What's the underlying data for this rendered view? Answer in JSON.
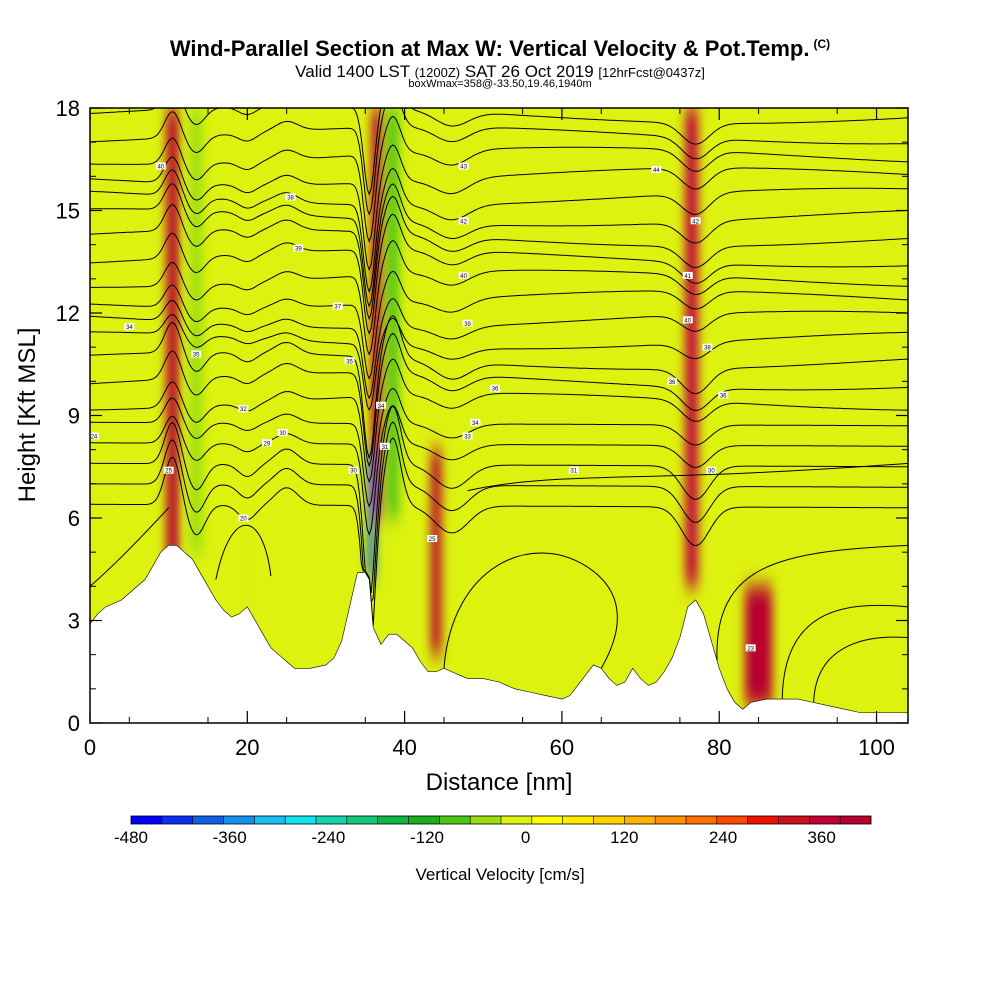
{
  "header": {
    "title_main": "Wind-Parallel Section at Max W: Vertical Velocity & Pot.Temp.",
    "title_mark": "(C)",
    "subtitle_a": "Valid 1400 LST",
    "subtitle_b": "(1200Z)",
    "subtitle_c": "SAT 26 Oct 2019",
    "subtitle_d": "[12hrFcst@0437z]",
    "boxline": "boxWmax=358@-33.50,19.46,1940m"
  },
  "chart_data": {
    "type": "heatmap",
    "xlabel": "Distance [nm]",
    "ylabel": "Height [Kft MSL]",
    "xlim": [
      0,
      104
    ],
    "ylim": [
      0,
      18
    ],
    "x_ticks": [
      "0",
      "20",
      "40",
      "60",
      "80",
      "100"
    ],
    "y_ticks": [
      "0",
      "3",
      "6",
      "9",
      "12",
      "15",
      "18"
    ],
    "colorbar": {
      "label": "Vertical Velocity [cm/s]",
      "range": [
        -480,
        420
      ],
      "step": 30,
      "tick_labels": [
        "-480",
        "-360",
        "-240",
        "-120",
        "0",
        "120",
        "240",
        "360"
      ],
      "colors": [
        "#0000ff",
        "#0a2ff2",
        "#0f5ee6",
        "#1491ee",
        "#17c0f5",
        "#11e4ee",
        "#16d4b0",
        "#10c878",
        "#10b545",
        "#19b019",
        "#4cc517",
        "#99dd10",
        "#ddf20f",
        "#ffff00",
        "#ffea00",
        "#ffd200",
        "#ffb200",
        "#ff9200",
        "#ff6e00",
        "#ff4800",
        "#ee1200",
        "#d01020",
        "#c0003a",
        "#b8002f"
      ]
    },
    "terrain_kft": {
      "x": [
        0,
        1,
        2,
        4,
        7,
        8,
        9,
        10,
        11,
        12,
        13,
        14,
        15,
        16,
        17,
        18,
        19,
        20,
        21,
        22,
        23,
        24,
        25,
        26,
        28,
        30,
        31,
        32,
        33,
        34,
        35,
        35.5,
        36,
        37,
        38,
        39,
        40,
        41,
        42,
        43,
        44,
        45,
        46,
        47,
        48,
        50,
        52,
        53,
        54,
        56,
        58,
        60,
        61,
        62,
        63,
        64,
        65,
        66,
        67,
        68,
        69,
        70,
        71,
        72,
        73,
        74,
        75,
        76,
        77,
        78,
        79,
        80,
        81,
        82,
        83,
        84,
        86,
        88,
        90,
        92,
        94,
        96,
        98,
        100,
        102,
        104
      ],
      "y": [
        2.9,
        3.2,
        3.4,
        3.6,
        4.2,
        4.6,
        5.0,
        5.2,
        5.2,
        5.0,
        4.8,
        4.4,
        4.0,
        3.6,
        3.3,
        3.1,
        3.2,
        3.4,
        3.0,
        2.6,
        2.2,
        2.0,
        1.8,
        1.6,
        1.6,
        1.7,
        1.9,
        2.4,
        3.4,
        4.4,
        4.4,
        4.2,
        2.8,
        2.3,
        2.6,
        2.6,
        2.4,
        2.2,
        1.8,
        1.5,
        1.5,
        1.6,
        1.5,
        1.4,
        1.3,
        1.3,
        1.2,
        1.1,
        1.0,
        0.9,
        0.8,
        0.7,
        0.8,
        1.1,
        1.4,
        1.7,
        1.6,
        1.3,
        1.1,
        1.2,
        1.6,
        1.3,
        1.1,
        1.2,
        1.5,
        1.9,
        2.5,
        3.4,
        3.6,
        3.2,
        2.4,
        1.6,
        1.0,
        0.6,
        0.4,
        0.6,
        0.7,
        0.7,
        0.7,
        0.6,
        0.5,
        0.4,
        0.3,
        0.3,
        0.3,
        0.3
      ]
    },
    "w_bands_cm_s": [
      {
        "x_nm": 10.5,
        "w": 230,
        "width_nm": 1.6,
        "z_min": 2,
        "z_max": 18
      },
      {
        "x_nm": 13.5,
        "w": -150,
        "width_nm": 1.5,
        "z_min": 5,
        "z_max": 18
      },
      {
        "x_nm": 20,
        "w": -110,
        "width_nm": 1.2,
        "z_min": 3,
        "z_max": 7
      },
      {
        "x_nm": 36.5,
        "w": 390,
        "width_nm": 1.4,
        "z_min": 6,
        "z_max": 18
      },
      {
        "x_nm": 35.8,
        "w": -420,
        "width_nm": 0.9,
        "z_min": 4.2,
        "z_max": 8
      },
      {
        "x_nm": 38.5,
        "w": -170,
        "width_nm": 1.5,
        "z_min": 6,
        "z_max": 18
      },
      {
        "x_nm": 44,
        "w": 220,
        "width_nm": 1.3,
        "z_min": 2,
        "z_max": 8
      },
      {
        "x_nm": 76.5,
        "w": 180,
        "width_nm": 1.6,
        "z_min": 4,
        "z_max": 18
      },
      {
        "x_nm": 85,
        "w": 330,
        "width_nm": 3.5,
        "z_min": 0.5,
        "z_max": 4
      }
    ],
    "theta_contour_labels": [
      {
        "x": 0.5,
        "y": 8.4,
        "text": "24"
      },
      {
        "x": 5,
        "y": 11.6,
        "text": "34"
      },
      {
        "x": 9,
        "y": 16.3,
        "text": "40"
      },
      {
        "x": 10,
        "y": 7.4,
        "text": "25"
      },
      {
        "x": 13.5,
        "y": 10.8,
        "text": "35"
      },
      {
        "x": 19.5,
        "y": 9.2,
        "text": "32"
      },
      {
        "x": 19.5,
        "y": 6.0,
        "text": "20"
      },
      {
        "x": 22.5,
        "y": 8.2,
        "text": "29"
      },
      {
        "x": 24.5,
        "y": 8.5,
        "text": "30"
      },
      {
        "x": 25.5,
        "y": 15.4,
        "text": "38"
      },
      {
        "x": 26.5,
        "y": 13.9,
        "text": "39"
      },
      {
        "x": 31.5,
        "y": 12.2,
        "text": "37"
      },
      {
        "x": 33,
        "y": 10.6,
        "text": "35"
      },
      {
        "x": 33.5,
        "y": 7.4,
        "text": "30"
      },
      {
        "x": 37,
        "y": 9.3,
        "text": "34"
      },
      {
        "x": 37.5,
        "y": 8.1,
        "text": "31"
      },
      {
        "x": 43.5,
        "y": 5.4,
        "text": "25"
      },
      {
        "x": 47.5,
        "y": 16.3,
        "text": "43"
      },
      {
        "x": 47.5,
        "y": 14.7,
        "text": "42"
      },
      {
        "x": 47.5,
        "y": 13.1,
        "text": "40"
      },
      {
        "x": 48,
        "y": 11.7,
        "text": "39"
      },
      {
        "x": 48,
        "y": 8.4,
        "text": "33"
      },
      {
        "x": 49,
        "y": 8.8,
        "text": "34"
      },
      {
        "x": 51.5,
        "y": 9.8,
        "text": "36"
      },
      {
        "x": 61.5,
        "y": 7.4,
        "text": "31"
      },
      {
        "x": 72,
        "y": 16.2,
        "text": "44"
      },
      {
        "x": 74,
        "y": 10.0,
        "text": "36"
      },
      {
        "x": 76,
        "y": 13.1,
        "text": "41"
      },
      {
        "x": 76,
        "y": 11.8,
        "text": "40"
      },
      {
        "x": 77,
        "y": 14.7,
        "text": "42"
      },
      {
        "x": 78.5,
        "y": 11.0,
        "text": "38"
      },
      {
        "x": 79,
        "y": 7.4,
        "text": "30"
      },
      {
        "x": 80.5,
        "y": 9.6,
        "text": "36"
      },
      {
        "x": 84,
        "y": 2.2,
        "text": "23"
      }
    ]
  }
}
